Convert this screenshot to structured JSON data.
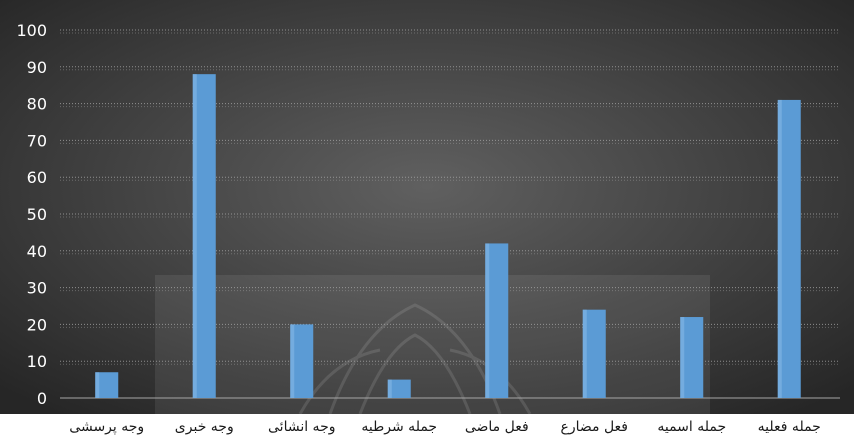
{
  "chart_data": {
    "type": "bar",
    "categories": [
      "وجه پرسشی",
      "وجه خبری",
      "وجه انشائی",
      "جمله شرطیه",
      "فعل ماضی",
      "فعل مضارع",
      "جمله اسمیه",
      "جمله فعلیه"
    ],
    "values": [
      7,
      88,
      20,
      5,
      42,
      24,
      22,
      81
    ],
    "ylim": [
      0,
      100
    ],
    "yticks": [
      0,
      10,
      20,
      30,
      40,
      50,
      60,
      70,
      80,
      90,
      100
    ],
    "grid": true,
    "legend": "none",
    "title": "",
    "xlabel": "",
    "ylabel": ""
  },
  "colors": {
    "bar": "#5b9bd5",
    "bar_highlight": "#86b8e6",
    "background_center": "#606060",
    "background_edge": "#262626",
    "tick_label": "#ffffff",
    "category_label": "#1a1a1a",
    "grid": "#a6a6a6"
  }
}
